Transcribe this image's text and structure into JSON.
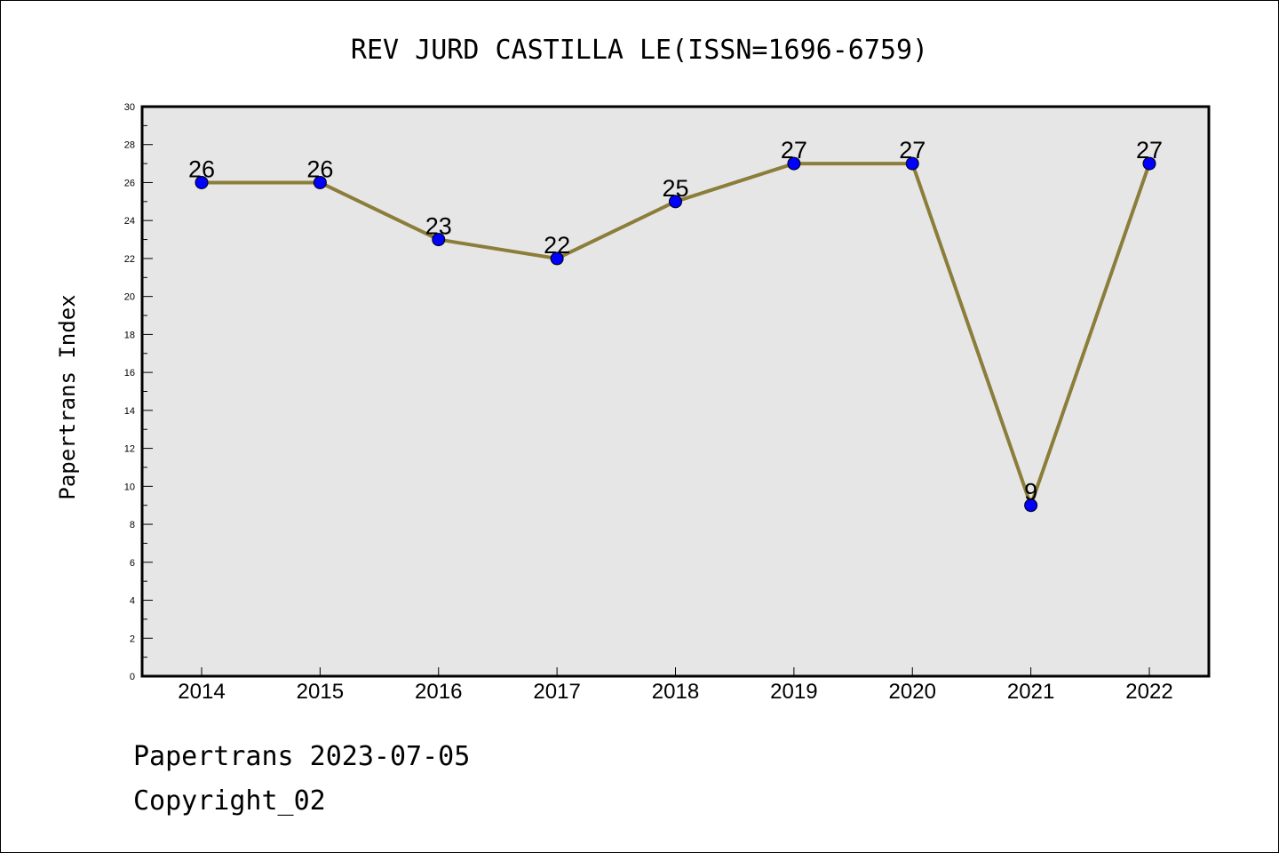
{
  "chart_data": {
    "type": "line",
    "title": "REV JURD CASTILLA LE(ISSN=1696-6759)",
    "xlabel": "",
    "ylabel": "Papertrans Index",
    "categories": [
      "2014",
      "2015",
      "2016",
      "2017",
      "2018",
      "2019",
      "2020",
      "2021",
      "2022"
    ],
    "series": [
      {
        "values": [
          26,
          26,
          23,
          22,
          25,
          27,
          27,
          9,
          27
        ]
      }
    ],
    "ylim": [
      0,
      30
    ],
    "yticks": [
      0,
      2,
      4,
      6,
      8,
      10,
      12,
      14,
      16,
      18,
      20,
      22,
      24,
      26,
      28,
      30
    ],
    "grid": false,
    "data_labels": true,
    "colors": {
      "plot_background": "#e6e6e6",
      "line": "#8b7d3a",
      "marker": "#0000ff"
    }
  },
  "footer": {
    "date_text": "Papertrans 2023-07-05",
    "copyright": "Copyright_02"
  }
}
